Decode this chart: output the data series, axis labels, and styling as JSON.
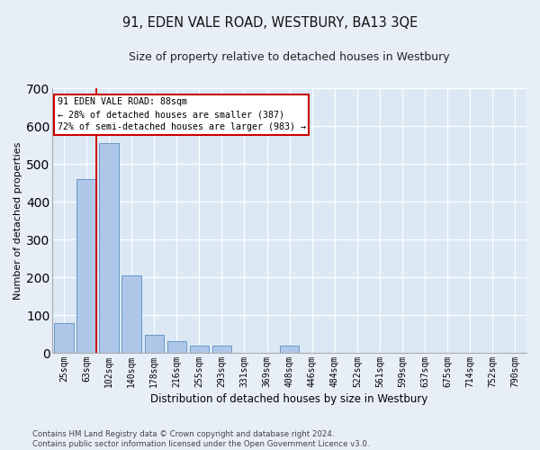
{
  "title": "91, EDEN VALE ROAD, WESTBURY, BA13 3QE",
  "subtitle": "Size of property relative to detached houses in Westbury",
  "xlabel": "Distribution of detached houses by size in Westbury",
  "ylabel": "Number of detached properties",
  "categories": [
    "25sqm",
    "63sqm",
    "102sqm",
    "140sqm",
    "178sqm",
    "216sqm",
    "255sqm",
    "293sqm",
    "331sqm",
    "369sqm",
    "408sqm",
    "446sqm",
    "484sqm",
    "522sqm",
    "561sqm",
    "599sqm",
    "637sqm",
    "675sqm",
    "714sqm",
    "752sqm",
    "790sqm"
  ],
  "values": [
    78,
    460,
    555,
    205,
    48,
    30,
    20,
    18,
    0,
    0,
    18,
    0,
    0,
    0,
    0,
    0,
    0,
    0,
    0,
    0,
    0
  ],
  "bar_color": "#aec6e8",
  "bar_edge_color": "#5a8fc2",
  "plot_bg_color": "#dce9f5",
  "fig_bg_color": "#e8eef8",
  "grid_color": "#ffffff",
  "annotation_line1": "91 EDEN VALE ROAD: 88sqm",
  "annotation_line2": "← 28% of detached houses are smaller (387)",
  "annotation_line3": "72% of semi-detached houses are larger (983) →",
  "annotation_box_color": "#ffffff",
  "annotation_border_color": "#cc0000",
  "redline_bin_index": 1,
  "ylim": [
    0,
    700
  ],
  "yticks": [
    0,
    100,
    200,
    300,
    400,
    500,
    600,
    700
  ],
  "footer_line1": "Contains HM Land Registry data © Crown copyright and database right 2024.",
  "footer_line2": "Contains public sector information licensed under the Open Government Licence v3.0.",
  "title_fontsize": 10.5,
  "subtitle_fontsize": 9,
  "ylabel_fontsize": 8,
  "xlabel_fontsize": 8.5,
  "tick_fontsize": 7,
  "annotation_fontsize": 7.2,
  "footer_fontsize": 6.2
}
